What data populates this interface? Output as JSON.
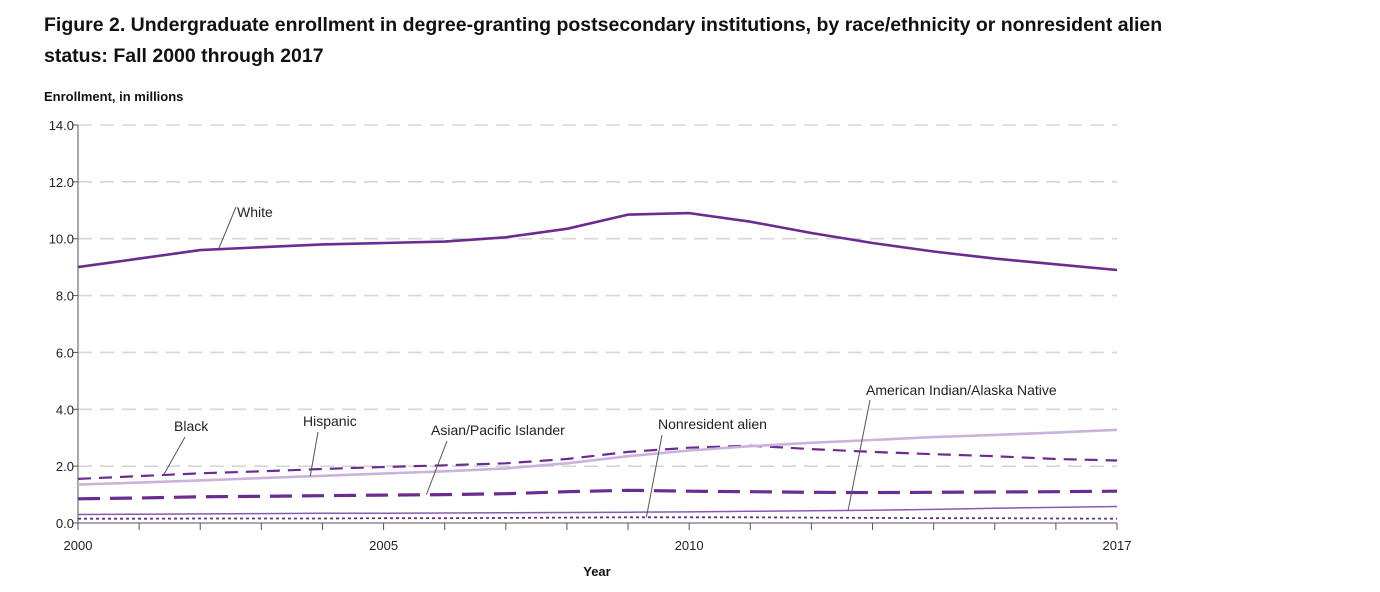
{
  "chart_data": {
    "type": "line",
    "title": "Figure 2. Undergraduate enrollment in degree-granting postsecondary institutions, by race/ethnicity or nonresident alien status: Fall 2000 through 2017",
    "ylabel": "Enrollment, in millions",
    "xlabel": "Year",
    "ylim": [
      0,
      14
    ],
    "xlim": [
      2000,
      2017
    ],
    "y_ticks": [
      "0.0",
      "2.0",
      "4.0",
      "6.0",
      "8.0",
      "10.0",
      "12.0",
      "14.0"
    ],
    "x_ticks": [
      "2000",
      "2005",
      "2010",
      "2017"
    ],
    "grid": "horizontal dashed",
    "x": [
      2000,
      2001,
      2002,
      2003,
      2004,
      2005,
      2006,
      2007,
      2008,
      2009,
      2010,
      2011,
      2012,
      2013,
      2014,
      2015,
      2016,
      2017
    ],
    "series": [
      {
        "name": "White",
        "color": "#6a2c91",
        "style": "solid",
        "width": 2.6,
        "values": [
          9.0,
          9.3,
          9.6,
          9.7,
          9.8,
          9.85,
          9.9,
          10.05,
          10.35,
          10.85,
          10.9,
          10.6,
          10.2,
          9.85,
          9.55,
          9.3,
          9.1,
          8.9
        ]
      },
      {
        "name": "Black",
        "color": "#6a2c91",
        "style": "dashed",
        "width": 2.2,
        "values": [
          1.55,
          1.65,
          1.75,
          1.82,
          1.9,
          1.97,
          2.03,
          2.1,
          2.25,
          2.5,
          2.65,
          2.72,
          2.6,
          2.5,
          2.42,
          2.35,
          2.25,
          2.2
        ]
      },
      {
        "name": "Hispanic",
        "color": "#c9b3dd",
        "style": "solid",
        "width": 2.6,
        "values": [
          1.35,
          1.42,
          1.5,
          1.58,
          1.66,
          1.74,
          1.82,
          1.92,
          2.1,
          2.35,
          2.55,
          2.7,
          2.82,
          2.92,
          3.02,
          3.1,
          3.18,
          3.28
        ]
      },
      {
        "name": "Asian/Pacific Islander",
        "color": "#6a2c91",
        "style": "longdash",
        "width": 3.2,
        "values": [
          0.85,
          0.88,
          0.92,
          0.94,
          0.96,
          0.98,
          1.0,
          1.03,
          1.1,
          1.15,
          1.12,
          1.1,
          1.08,
          1.07,
          1.08,
          1.09,
          1.1,
          1.12
        ]
      },
      {
        "name": "Nonresident alien",
        "color": "#6a2c91",
        "style": "dotted",
        "width": 1.8,
        "values": [
          0.15,
          0.15,
          0.16,
          0.16,
          0.16,
          0.17,
          0.17,
          0.18,
          0.19,
          0.2,
          0.2,
          0.2,
          0.19,
          0.18,
          0.17,
          0.17,
          0.16,
          0.15
        ]
      },
      {
        "name": "American Indian/Alaska Native",
        "color": "#8a5ab0",
        "style": "solid",
        "width": 1.5,
        "values": [
          0.3,
          0.31,
          0.32,
          0.33,
          0.34,
          0.34,
          0.35,
          0.36,
          0.37,
          0.38,
          0.39,
          0.41,
          0.43,
          0.45,
          0.48,
          0.52,
          0.55,
          0.58
        ]
      }
    ]
  }
}
